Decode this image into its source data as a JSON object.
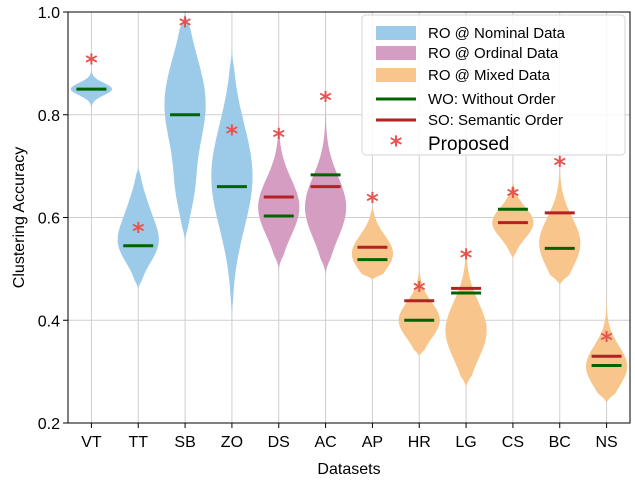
{
  "chart_data": {
    "type": "violin",
    "xlabel": "Datasets",
    "ylabel": "Clustering Accuracy",
    "ylim": [
      0.2,
      1.0
    ],
    "yticks": [
      0.2,
      0.4,
      0.6,
      0.8,
      1.0
    ],
    "ytick_labels": [
      "0.2",
      "0.4",
      "0.6",
      "0.8",
      "1.0"
    ],
    "grid": true,
    "legend_position": "top-right",
    "colors": {
      "nominal": "#9ccbe9",
      "ordinal": "#d59dc1",
      "mixed": "#f8c68d",
      "wo": "#006400",
      "so": "#b22222",
      "proposed": "#e8534f"
    },
    "legend": [
      {
        "key": "nominal",
        "label": "RO @ Nominal  Data",
        "kind": "patch"
      },
      {
        "key": "ordinal",
        "label": "RO @ Ordinal  Data",
        "kind": "patch"
      },
      {
        "key": "mixed",
        "label": "RO @ Mixed  Data",
        "kind": "patch"
      },
      {
        "key": "wo",
        "label": "WO: Without Order",
        "kind": "line"
      },
      {
        "key": "so",
        "label": "SO: Semantic Order",
        "kind": "line"
      },
      {
        "key": "proposed",
        "label": "Proposed",
        "kind": "marker"
      }
    ],
    "datasets": [
      {
        "name": "VT",
        "group": "nominal",
        "min": 0.81,
        "max": 0.895,
        "modes": [
          [
            0.85,
            1.0,
            0.012
          ]
        ],
        "wo": 0.85,
        "so": null,
        "proposed": 0.905
      },
      {
        "name": "TT",
        "group": "nominal",
        "min": 0.46,
        "max": 0.7,
        "modes": [
          [
            0.55,
            0.9,
            0.04
          ],
          [
            0.62,
            0.35,
            0.04
          ]
        ],
        "wo": 0.545,
        "so": null,
        "proposed": 0.577
      },
      {
        "name": "SB",
        "group": "nominal",
        "min": 0.55,
        "max": 1.0,
        "modes": [
          [
            0.82,
            1.0,
            0.09
          ],
          [
            0.65,
            0.3,
            0.05
          ]
        ],
        "wo": 0.8,
        "so": null,
        "proposed": 0.977
      },
      {
        "name": "ZO",
        "group": "nominal",
        "min": 0.4,
        "max": 0.93,
        "modes": [
          [
            0.68,
            1.0,
            0.1
          ]
        ],
        "wo": 0.66,
        "so": null,
        "proposed": 0.766
      },
      {
        "name": "DS",
        "group": "ordinal",
        "min": 0.5,
        "max": 0.87,
        "modes": [
          [
            0.62,
            1.0,
            0.055
          ]
        ],
        "wo": 0.603,
        "so": 0.64,
        "proposed": 0.76
      },
      {
        "name": "AC",
        "group": "ordinal",
        "min": 0.49,
        "max": 0.91,
        "modes": [
          [
            0.62,
            1.0,
            0.06
          ]
        ],
        "wo": 0.683,
        "so": 0.66,
        "proposed": 0.832
      },
      {
        "name": "AP",
        "group": "mixed",
        "min": 0.48,
        "max": 0.62,
        "modes": [
          [
            0.53,
            1.0,
            0.035
          ]
        ],
        "wo": 0.518,
        "so": 0.542,
        "proposed": 0.635
      },
      {
        "name": "HR",
        "group": "mixed",
        "min": 0.33,
        "max": 0.5,
        "modes": [
          [
            0.4,
            1.0,
            0.035
          ]
        ],
        "wo": 0.4,
        "so": 0.438,
        "proposed": 0.462
      },
      {
        "name": "LG",
        "group": "mixed",
        "min": 0.27,
        "max": 0.58,
        "modes": [
          [
            0.38,
            1.0,
            0.055
          ]
        ],
        "wo": 0.453,
        "so": 0.462,
        "proposed": 0.525
      },
      {
        "name": "CS",
        "group": "mixed",
        "min": 0.52,
        "max": 0.67,
        "modes": [
          [
            0.59,
            1.0,
            0.03
          ]
        ],
        "wo": 0.616,
        "so": 0.59,
        "proposed": 0.645
      },
      {
        "name": "BC",
        "group": "mixed",
        "min": 0.47,
        "max": 0.72,
        "modes": [
          [
            0.55,
            1.0,
            0.05
          ]
        ],
        "wo": 0.54,
        "so": 0.609,
        "proposed": 0.705
      },
      {
        "name": "NS",
        "group": "mixed",
        "min": 0.24,
        "max": 0.48,
        "modes": [
          [
            0.31,
            1.0,
            0.04
          ]
        ],
        "wo": 0.312,
        "so": 0.33,
        "proposed": 0.364
      }
    ]
  }
}
